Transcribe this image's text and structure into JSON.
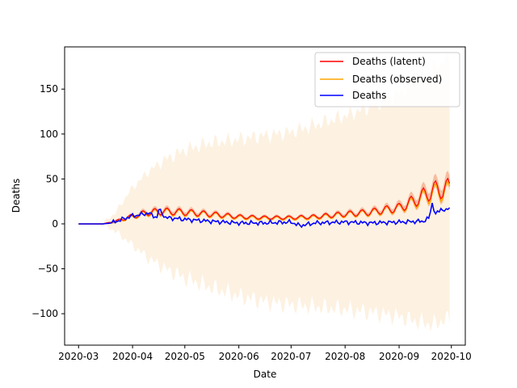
{
  "chart_data": {
    "type": "line",
    "xlabel": "Date",
    "ylabel": "Deaths",
    "x_ticks": [
      "2020-03",
      "2020-04",
      "2020-05",
      "2020-06",
      "2020-07",
      "2020-08",
      "2020-09",
      "2020-10"
    ],
    "x_range": [
      "2020-02-22",
      "2020-10-09"
    ],
    "y_ticks": [
      -100,
      -50,
      0,
      50,
      100,
      150
    ],
    "ylim": [
      -135,
      197
    ],
    "legend": {
      "position": "top-right",
      "entries": [
        "Deaths (latent)",
        "Deaths (observed)",
        "Deaths"
      ]
    },
    "colors": {
      "latent": "#ff0000",
      "latent_band": "#f4a582",
      "observed": "#ffa500",
      "observed_band": "#fdf1e1",
      "deaths": "#0000ff"
    },
    "date_start": "2020-03-01",
    "series": [
      {
        "name": "Deaths (latent)",
        "x": [
          "2020-03-01",
          "2020-03-15",
          "2020-03-22",
          "2020-03-31",
          "2020-04-10",
          "2020-04-20",
          "2020-05-01",
          "2020-05-15",
          "2020-06-01",
          "2020-06-15",
          "2020-07-01",
          "2020-07-15",
          "2020-08-01",
          "2020-08-15",
          "2020-09-01",
          "2020-09-10",
          "2020-09-20",
          "2020-09-30"
        ],
        "values": [
          0,
          0,
          3,
          8,
          13,
          14,
          13,
          11,
          8,
          7,
          7,
          8,
          11,
          13,
          18,
          26,
          37,
          40
        ]
      },
      {
        "name": "Deaths (observed)",
        "x": [
          "2020-03-01",
          "2020-03-15",
          "2020-03-22",
          "2020-03-31",
          "2020-04-10",
          "2020-04-20",
          "2020-05-01",
          "2020-05-15",
          "2020-06-01",
          "2020-06-15",
          "2020-07-01",
          "2020-07-15",
          "2020-08-01",
          "2020-08-15",
          "2020-09-01",
          "2020-09-10",
          "2020-09-20",
          "2020-09-30"
        ],
        "values": [
          0,
          0,
          2,
          7,
          12,
          13,
          12,
          10,
          7,
          6,
          6,
          7,
          10,
          12,
          17,
          24,
          34,
          37
        ],
        "band_lower": [
          0,
          -1,
          -8,
          -22,
          -38,
          -50,
          -60,
          -70,
          -80,
          -86,
          -90,
          -92,
          -95,
          -98,
          -103,
          -108,
          -112,
          -105
        ],
        "band_upper": [
          0,
          1,
          12,
          38,
          58,
          72,
          82,
          90,
          94,
          98,
          102,
          110,
          120,
          130,
          145,
          160,
          172,
          185
        ]
      },
      {
        "name": "Deaths",
        "x": [
          "2020-03-01",
          "2020-03-15",
          "2020-03-20",
          "2020-03-26",
          "2020-04-01",
          "2020-04-05",
          "2020-04-10",
          "2020-04-13",
          "2020-04-15",
          "2020-04-16",
          "2020-04-20",
          "2020-05-01",
          "2020-05-15",
          "2020-06-01",
          "2020-06-15",
          "2020-07-01",
          "2020-07-06",
          "2020-07-15",
          "2020-08-01",
          "2020-08-15",
          "2020-09-01",
          "2020-09-15",
          "2020-09-18",
          "2020-09-20",
          "2020-09-22",
          "2020-09-25",
          "2020-09-28",
          "2020-09-30"
        ],
        "values": [
          0,
          0,
          1,
          5,
          9,
          10,
          12,
          9,
          7,
          16,
          7,
          5,
          3,
          1,
          1,
          2,
          -2,
          1,
          2,
          1,
          2,
          3,
          6,
          23,
          10,
          17,
          14,
          19
        ]
      }
    ]
  }
}
